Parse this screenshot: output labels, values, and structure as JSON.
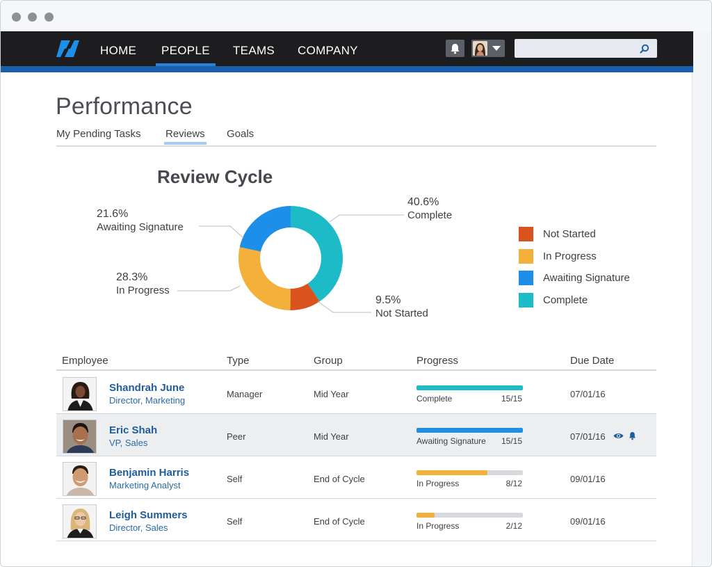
{
  "colors": {
    "nav_bg": "#1d1d1f",
    "nav_stripe": "#1a5fa7",
    "not_started": "#d9531e",
    "in_progress": "#f3b03b",
    "awaiting_signature": "#1e8fe8",
    "complete": "#1dbac8",
    "link": "#1e5d9b"
  },
  "nav": {
    "items": [
      {
        "label": "HOME",
        "active": false
      },
      {
        "label": "PEOPLE",
        "active": true
      },
      {
        "label": "TEAMS",
        "active": false
      },
      {
        "label": "COMPANY",
        "active": false
      }
    ],
    "notifications_icon": "bell-icon",
    "user_menu_icon": "user-avatar",
    "search": {
      "value": "",
      "placeholder": ""
    }
  },
  "page": {
    "title": "Performance",
    "tabs": [
      {
        "label": "My Pending Tasks",
        "active": false
      },
      {
        "label": "Reviews",
        "active": true
      },
      {
        "label": "Goals",
        "active": false
      }
    ]
  },
  "chart_data": {
    "type": "pie",
    "title": "Review Cycle",
    "donut": true,
    "slices": [
      {
        "label": "Complete",
        "value": 40.6,
        "display": "40.6%",
        "color": "#1dbac8"
      },
      {
        "label": "Not Started",
        "value": 9.5,
        "display": "9.5%",
        "color": "#d9531e"
      },
      {
        "label": "In Progress",
        "value": 28.3,
        "display": "28.3%",
        "color": "#f3b03b"
      },
      {
        "label": "Awaiting Signature",
        "value": 21.6,
        "display": "21.6%",
        "color": "#1e8fe8"
      }
    ],
    "legend": {
      "placement": "right",
      "entries": [
        {
          "label": "Not Started",
          "color": "#d9531e"
        },
        {
          "label": "In Progress",
          "color": "#f3b03b"
        },
        {
          "label": "Awaiting Signature",
          "color": "#1e8fe8"
        },
        {
          "label": "Complete",
          "color": "#1dbac8"
        }
      ]
    }
  },
  "table": {
    "headers": [
      "Employee",
      "Type",
      "Group",
      "Progress",
      "Due Date"
    ],
    "rows": [
      {
        "name": "Shandrah June",
        "title": "Director, Marketing",
        "type": "Manager",
        "group": "Mid Year",
        "status": "Complete",
        "count": "15/15",
        "progress": 1.0,
        "bar_color": "#1dbac8",
        "due": "07/01/16",
        "highlighted": false
      },
      {
        "name": "Eric Shah",
        "title": "VP, Sales",
        "type": "Peer",
        "group": "Mid Year",
        "status": "Awaiting Signature",
        "count": "15/15",
        "progress": 1.0,
        "bar_color": "#1e8fe8",
        "due": "07/01/16",
        "highlighted": true,
        "row_icons": [
          "eye-icon",
          "bell-icon"
        ]
      },
      {
        "name": "Benjamin Harris",
        "title": "Marketing Analyst",
        "type": "Self",
        "group": "End of Cycle",
        "status": "In Progress",
        "count": "8/12",
        "progress": 0.667,
        "bar_color": "#f3b03b",
        "due": "09/01/16",
        "highlighted": false
      },
      {
        "name": "Leigh Summers",
        "title": "Director, Sales",
        "type": "Self",
        "group": "End of Cycle",
        "status": "In Progress",
        "count": "2/12",
        "progress": 0.167,
        "bar_color": "#f3b03b",
        "due": "09/01/16",
        "highlighted": false
      }
    ]
  }
}
